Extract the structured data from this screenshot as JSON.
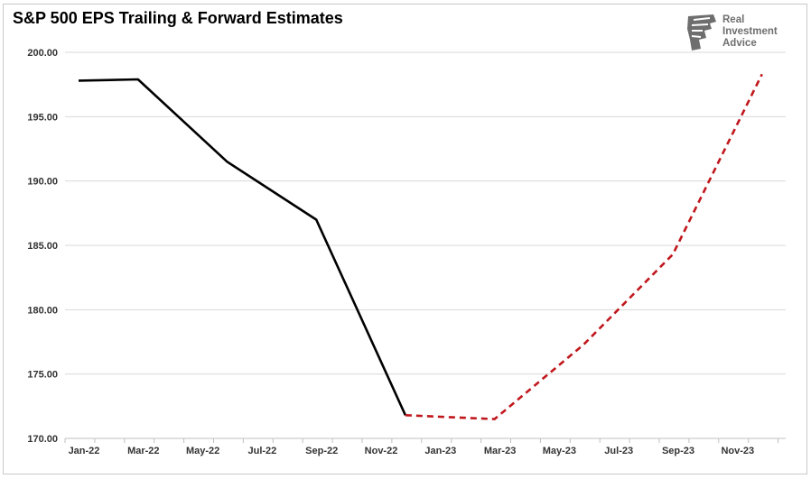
{
  "chart_data": {
    "type": "line",
    "title": "S&P 500 EPS Trailing & Forward Estimates",
    "xlabel": "",
    "ylabel": "",
    "x_ticks": [
      "Jan-22",
      "Mar-22",
      "May-22",
      "Jul-22",
      "Sep-22",
      "Nov-22",
      "Jan-23",
      "Mar-23",
      "May-23",
      "Jul-23",
      "Sep-23",
      "Nov-23"
    ],
    "y_ticks": [
      "170.00",
      "175.00",
      "180.00",
      "185.00",
      "190.00",
      "195.00",
      "200.00"
    ],
    "ylim": [
      170,
      200
    ],
    "grid": true,
    "legend": "none",
    "series": [
      {
        "style": "solid",
        "color": "#000000",
        "points": [
          {
            "x": "2022-01",
            "y": 197.8
          },
          {
            "x": "2022-03",
            "y": 197.9
          },
          {
            "x": "2022-06",
            "y": 191.5
          },
          {
            "x": "2022-09",
            "y": 187.0
          },
          {
            "x": "2022-12",
            "y": 171.8
          }
        ]
      },
      {
        "style": "dashed",
        "color": "#c0171c",
        "points": [
          {
            "x": "2022-12",
            "y": 171.8
          },
          {
            "x": "2023-03",
            "y": 171.5
          },
          {
            "x": "2023-06",
            "y": 177.3
          },
          {
            "x": "2023-09",
            "y": 184.3
          },
          {
            "x": "2023-12",
            "y": 198.3
          }
        ]
      }
    ]
  },
  "logo": {
    "lines": [
      "Real",
      "Investment",
      "Advice"
    ],
    "icon": "eagle-head-icon",
    "color": "#6e6e6e"
  }
}
